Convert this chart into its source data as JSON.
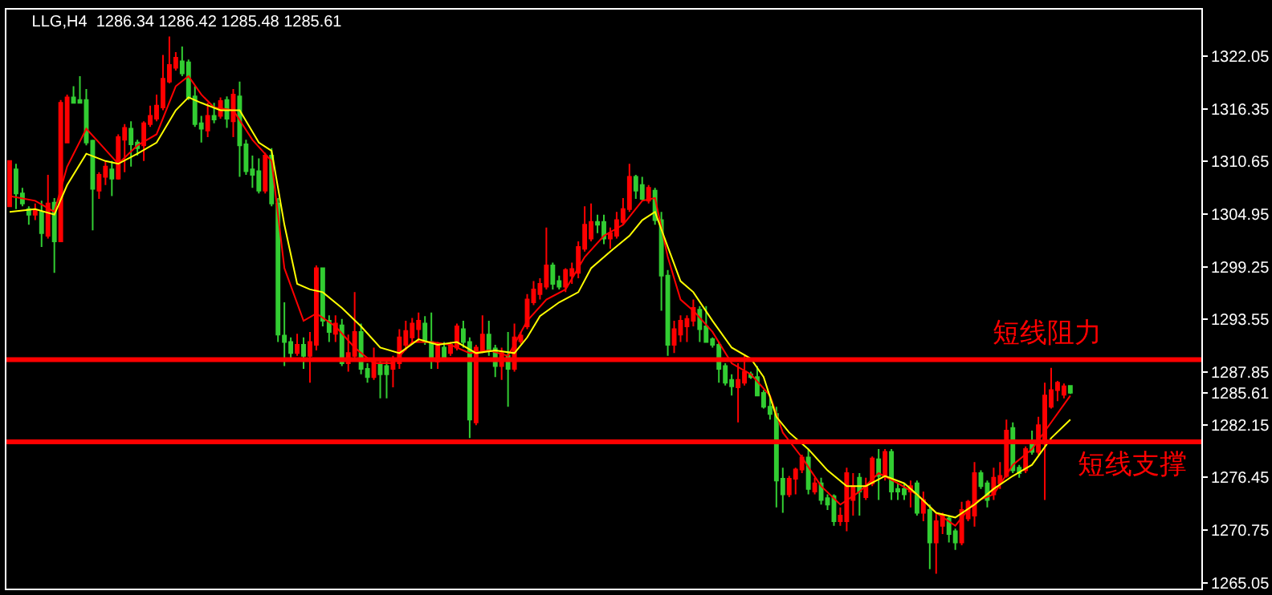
{
  "chart_data": {
    "type": "candlestick",
    "title": "LLG,H4  1286.34 1286.42 1285.48 1285.61",
    "categories": [
      null,
      null,
      null,
      null,
      null,
      null,
      null,
      null,
      null,
      null,
      null,
      null,
      null,
      null,
      null,
      null,
      null,
      null,
      null,
      null,
      null,
      null,
      null,
      null,
      null,
      null,
      null,
      null,
      null,
      null,
      null,
      null,
      null,
      null,
      null,
      null,
      null,
      null,
      null,
      null,
      null,
      null,
      null,
      null,
      null,
      null,
      null,
      null,
      null,
      null,
      null,
      null,
      null,
      null,
      null,
      null,
      null,
      null,
      null,
      null,
      null,
      null,
      null,
      null,
      null,
      null,
      null,
      null,
      null,
      null,
      null,
      null,
      null,
      null,
      null,
      null,
      null,
      null,
      null,
      null,
      null,
      null,
      null,
      null,
      null,
      null,
      null,
      null,
      null,
      null,
      null,
      null,
      null,
      null,
      null,
      null,
      null,
      null,
      null,
      null,
      null,
      null,
      null,
      null,
      null,
      null,
      null,
      null,
      null,
      null,
      null,
      null,
      null,
      null,
      null,
      null,
      null,
      null,
      null,
      null,
      null,
      null,
      null,
      null,
      null,
      null,
      null,
      null,
      null,
      null,
      null,
      null,
      null,
      null,
      null,
      null,
      null,
      null,
      null,
      null,
      null,
      null,
      null,
      null,
      null,
      null,
      null,
      null,
      null,
      null,
      null,
      null,
      null,
      null,
      null,
      null,
      null,
      null,
      null,
      null,
      null,
      null,
      null,
      null,
      null,
      null,
      null,
      null,
      null,
      null,
      null,
      null,
      null,
      null,
      null,
      null,
      null,
      null,
      null,
      null,
      null,
      null,
      null,
      null,
      null,
      null,
      null
    ],
    "colors": [
      "#ff0000",
      "#32cd32",
      "#32cd32",
      "#32cd32",
      "#ff0000",
      "#32cd32",
      "#ff0000",
      "#32cd32",
      "#ff0000",
      "#ff0000",
      "#32cd32",
      "#32cd32",
      "#32cd32",
      "#32cd32",
      "#ff0000",
      "#ff0000",
      "#32cd32",
      "#ff0000",
      "#ff0000",
      "#32cd32",
      "#32cd32",
      "#ff0000",
      "#ff0000",
      "#ff0000",
      "#ff0000",
      "#ff0000",
      "#ff0000",
      "#32cd32",
      "#32cd32",
      "#32cd32",
      "#32cd32",
      "#ff0000",
      "#32cd32",
      "#ff0000",
      "#32cd32",
      "#ff0000",
      "#32cd32",
      "#32cd32",
      "#32cd32",
      "#32cd32",
      "#ff0000",
      "#32cd32",
      "#32cd32",
      "#32cd32",
      "#32cd32",
      "#ff0000",
      "#32cd32",
      "#ff0000",
      "#ff0000",
      "#32cd32",
      "#32cd32",
      "#ff0000",
      "#32cd32",
      "#ff0000",
      "#ff0000",
      "#32cd32",
      "#32cd32",
      "#ff0000",
      "#32cd32",
      "#32cd32",
      "#ff0000",
      "#ff0000",
      "#ff0000",
      "#ff0000",
      "#ff0000",
      "#32cd32",
      "#32cd32",
      "#ff0000",
      "#32cd32",
      "#ff0000",
      "#ff0000",
      "#32cd32",
      "#32cd32",
      "#ff0000",
      "#ff0000",
      "#32cd32",
      "#32cd32",
      "#ff0000",
      "#32cd32",
      "#ff0000",
      "#ff0000",
      "#ff0000",
      "#ff0000",
      "#ff0000",
      "#ff0000",
      "#32cd32",
      "#32cd32",
      "#ff0000",
      "#ff0000",
      "#ff0000",
      "#ff0000",
      "#ff0000",
      "#32cd32",
      "#32cd32",
      "#ff0000",
      "#ff0000",
      "#ff0000",
      "#ff0000",
      "#32cd32",
      "#32cd32",
      "#ff0000",
      "#32cd32",
      "#32cd32",
      "#32cd32",
      "#ff0000",
      "#ff0000",
      "#ff0000",
      "#ff0000",
      "#32cd32",
      "#32cd32",
      "#32cd32",
      "#32cd32",
      "#32cd32",
      "#32cd32",
      "#ff0000",
      "#ff0000",
      "#32cd32",
      "#32cd32",
      "#32cd32",
      "#32cd32",
      "#32cd32",
      "#32cd32",
      "#ff0000",
      "#ff0000",
      "#ff0000",
      "#32cd32",
      "#ff0000",
      "#32cd32",
      "#32cd32",
      "#32cd32",
      "#ff0000",
      "#ff0000",
      "#ff0000",
      "#32cd32",
      "#ff0000",
      "#ff0000",
      "#32cd32",
      "#ff0000",
      "#32cd32",
      "#32cd32",
      "#32cd32",
      "#ff0000",
      "#32cd32",
      "#ff0000",
      "#32cd32",
      "#ff0000",
      "#ff0000",
      "#32cd32",
      "#32cd32",
      "#ff0000",
      "#ff0000",
      "#ff0000",
      "#32cd32",
      "#32cd32",
      "#ff0000",
      "#ff0000",
      "#ff0000",
      "#32cd32",
      "#32cd32",
      "#ff0000",
      "#32cd32",
      "#ff0000",
      "#ff0000",
      "#ff0000",
      "#ff0000",
      "#ff0000",
      "#32cd32",
      null,
      null,
      null,
      null,
      null,
      null,
      null,
      null,
      null,
      null,
      null,
      null,
      null,
      null,
      null,
      null,
      null,
      null,
      null,
      null
    ],
    "ohlc": [
      [
        1305.8,
        1310.7,
        1305.8,
        1310.7
      ],
      [
        1309.8,
        1310.4,
        1305.5,
        1307.2
      ],
      [
        1307.2,
        1307.8,
        1305.8,
        1306.1
      ],
      [
        1305.5,
        1305.8,
        1303.8,
        1304.9
      ],
      [
        1304.9,
        1306.1,
        1304.3,
        1305.4
      ],
      [
        1305.2,
        1306.4,
        1301.4,
        1302.9
      ],
      [
        1302.6,
        1309.2,
        1302.3,
        1306.1
      ],
      [
        1306.2,
        1306.7,
        1298.6,
        1302.0
      ],
      [
        1302.0,
        1317.3,
        1302.0,
        1317.0
      ],
      [
        1312.7,
        1317.9,
        1312.7,
        1317.6
      ],
      [
        1317.6,
        1318.8,
        1317.0,
        1317.0
      ],
      [
        1317.3,
        1319.9,
        1317.0,
        1317.0
      ],
      [
        1317.3,
        1318.5,
        1312.4,
        1312.7
      ],
      [
        1312.9,
        1313.0,
        1303.2,
        1307.7
      ],
      [
        1307.5,
        1309.5,
        1306.6,
        1309.2
      ],
      [
        1309.0,
        1310.7,
        1308.1,
        1310.1
      ],
      [
        1309.8,
        1310.7,
        1306.9,
        1308.8
      ],
      [
        1308.8,
        1313.6,
        1308.7,
        1313.3
      ],
      [
        1313.0,
        1314.7,
        1309.5,
        1314.3
      ],
      [
        1314.2,
        1315.0,
        1310.1,
        1312.5
      ],
      [
        1312.7,
        1313.0,
        1311.3,
        1312.1
      ],
      [
        1312.4,
        1315.0,
        1310.7,
        1314.8
      ],
      [
        1314.7,
        1316.7,
        1314.4,
        1315.6
      ],
      [
        1315.3,
        1317.9,
        1315.0,
        1316.7
      ],
      [
        1316.5,
        1322.2,
        1316.2,
        1319.6
      ],
      [
        1319.3,
        1324.2,
        1319.1,
        1321.1
      ],
      [
        1320.8,
        1322.5,
        1320.5,
        1321.9
      ],
      [
        1321.5,
        1323.1,
        1319.9,
        1320.2
      ],
      [
        1321.4,
        1321.7,
        1317.3,
        1317.6
      ],
      [
        1317.7,
        1318.8,
        1314.4,
        1314.7
      ],
      [
        1314.8,
        1315.6,
        1312.7,
        1314.2
      ],
      [
        1314.0,
        1317.0,
        1313.3,
        1315.6
      ],
      [
        1315.6,
        1317.0,
        1314.8,
        1315.2
      ],
      [
        1315.6,
        1317.6,
        1315.3,
        1317.2
      ],
      [
        1317.3,
        1317.7,
        1314.3,
        1315.3
      ],
      [
        1315.0,
        1318.5,
        1313.3,
        1317.9
      ],
      [
        1317.7,
        1319.3,
        1309.0,
        1312.4
      ],
      [
        1312.5,
        1313.0,
        1309.2,
        1309.6
      ],
      [
        1309.8,
        1311.3,
        1307.8,
        1309.2
      ],
      [
        1309.6,
        1311.0,
        1307.2,
        1307.5
      ],
      [
        1307.5,
        1311.6,
        1307.2,
        1311.3
      ],
      [
        1311.3,
        1312.1,
        1305.8,
        1306.1
      ],
      [
        1306.1,
        1306.7,
        1291.1,
        1291.9
      ],
      [
        1291.8,
        1295.4,
        1288.5,
        1291.1
      ],
      [
        1291.1,
        1291.6,
        1289.3,
        1289.9
      ],
      [
        1289.9,
        1292.0,
        1289.6,
        1290.8
      ],
      [
        1290.8,
        1291.6,
        1288.2,
        1289.6
      ],
      [
        1289.6,
        1292.2,
        1286.7,
        1291.1
      ],
      [
        1290.8,
        1299.4,
        1290.2,
        1299.1
      ],
      [
        1299.1,
        1299.1,
        1292.8,
        1293.4
      ],
      [
        1293.4,
        1294.0,
        1291.1,
        1292.2
      ],
      [
        1292.0,
        1294.0,
        1291.1,
        1293.1
      ],
      [
        1292.9,
        1293.6,
        1288.5,
        1288.8
      ],
      [
        1288.8,
        1291.9,
        1287.9,
        1289.9
      ],
      [
        1289.6,
        1296.5,
        1289.0,
        1292.2
      ],
      [
        1292.2,
        1293.1,
        1287.6,
        1288.2
      ],
      [
        1288.2,
        1288.8,
        1286.7,
        1287.3
      ],
      [
        1287.3,
        1290.5,
        1287.0,
        1289.3
      ],
      [
        1288.8,
        1289.0,
        1285.0,
        1287.6
      ],
      [
        1288.5,
        1289.3,
        1285.0,
        1287.6
      ],
      [
        1288.2,
        1289.6,
        1286.2,
        1289.0
      ],
      [
        1288.8,
        1292.5,
        1288.2,
        1291.6
      ],
      [
        1290.8,
        1293.4,
        1290.2,
        1292.3
      ],
      [
        1291.6,
        1293.7,
        1291.1,
        1293.1
      ],
      [
        1292.5,
        1294.3,
        1291.1,
        1293.4
      ],
      [
        1293.1,
        1293.9,
        1290.8,
        1291.1
      ],
      [
        1291.1,
        1294.3,
        1288.2,
        1289.3
      ],
      [
        1289.0,
        1291.1,
        1288.2,
        1290.8
      ],
      [
        1290.5,
        1291.1,
        1289.3,
        1289.3
      ],
      [
        1289.9,
        1291.1,
        1289.6,
        1290.8
      ],
      [
        1290.5,
        1293.1,
        1290.2,
        1292.8
      ],
      [
        1292.5,
        1293.4,
        1290.5,
        1291.1
      ],
      [
        1291.1,
        1291.6,
        1280.7,
        1282.7
      ],
      [
        1282.4,
        1290.8,
        1282.1,
        1290.5
      ],
      [
        1290.2,
        1294.0,
        1289.9,
        1291.9
      ],
      [
        1291.9,
        1293.4,
        1289.6,
        1290.2
      ],
      [
        1290.4,
        1290.8,
        1287.3,
        1288.5
      ],
      [
        1288.5,
        1290.5,
        1287.0,
        1289.9
      ],
      [
        1289.6,
        1292.2,
        1284.1,
        1288.2
      ],
      [
        1288.2,
        1293.1,
        1287.9,
        1291.6
      ],
      [
        1291.2,
        1292.2,
        1290.9,
        1291.8
      ],
      [
        1292.8,
        1296.3,
        1292.5,
        1295.7
      ],
      [
        1295.4,
        1297.7,
        1295.1,
        1296.8
      ],
      [
        1296.3,
        1298.0,
        1295.7,
        1297.4
      ],
      [
        1297.1,
        1303.5,
        1296.8,
        1299.4
      ],
      [
        1299.4,
        1299.7,
        1296.8,
        1297.4
      ],
      [
        1297.7,
        1298.3,
        1296.8,
        1297.1
      ],
      [
        1297.1,
        1299.1,
        1296.5,
        1298.9
      ],
      [
        1298.3,
        1299.7,
        1297.4,
        1299.0
      ],
      [
        1298.6,
        1302.0,
        1298.0,
        1301.4
      ],
      [
        1301.2,
        1305.8,
        1300.9,
        1303.8
      ],
      [
        1302.3,
        1306.1,
        1302.0,
        1304.1
      ],
      [
        1304.1,
        1304.9,
        1302.9,
        1303.8
      ],
      [
        1304.1,
        1304.9,
        1301.7,
        1302.3
      ],
      [
        1302.3,
        1303.5,
        1301.2,
        1302.9
      ],
      [
        1302.6,
        1305.2,
        1302.3,
        1304.3
      ],
      [
        1304.1,
        1306.7,
        1303.8,
        1305.5
      ],
      [
        1305.5,
        1310.4,
        1305.2,
        1309.0
      ],
      [
        1309.0,
        1309.2,
        1306.6,
        1307.5
      ],
      [
        1308.1,
        1309.0,
        1306.4,
        1306.6
      ],
      [
        1306.4,
        1308.1,
        1306.1,
        1307.8
      ],
      [
        1307.5,
        1307.8,
        1303.8,
        1304.3
      ],
      [
        1304.3,
        1305.2,
        1294.5,
        1298.3
      ],
      [
        1298.3,
        1298.9,
        1289.6,
        1290.8
      ],
      [
        1290.8,
        1293.4,
        1289.9,
        1292.5
      ],
      [
        1291.9,
        1294.0,
        1291.1,
        1293.4
      ],
      [
        1292.8,
        1294.0,
        1291.1,
        1293.6
      ],
      [
        1293.4,
        1295.7,
        1292.8,
        1294.8
      ],
      [
        1294.6,
        1295.0,
        1291.1,
        1292.5
      ],
      [
        1292.8,
        1295.0,
        1291.1,
        1291.1
      ],
      [
        1291.4,
        1291.6,
        1290.5,
        1290.8
      ],
      [
        1290.8,
        1291.1,
        1286.7,
        1288.2
      ],
      [
        1288.5,
        1288.8,
        1286.4,
        1286.7
      ],
      [
        1287.0,
        1287.6,
        1285.3,
        1286.3
      ],
      [
        1286.2,
        1288.8,
        1282.4,
        1287.0
      ],
      [
        1286.7,
        1289.6,
        1286.4,
        1287.9
      ],
      [
        1287.6,
        1287.9,
        1287.1,
        1287.3
      ],
      [
        1287.3,
        1288.5,
        1285.3,
        1285.3
      ],
      [
        1285.6,
        1285.9,
        1283.9,
        1284.1
      ],
      [
        1284.1,
        1285.0,
        1282.7,
        1283.3
      ],
      [
        1283.3,
        1284.1,
        1273.2,
        1276.1
      ],
      [
        1276.3,
        1277.5,
        1272.6,
        1274.6
      ],
      [
        1274.6,
        1276.6,
        1274.3,
        1276.3
      ],
      [
        1276.3,
        1277.5,
        1274.6,
        1277.3
      ],
      [
        1277.3,
        1278.9,
        1276.9,
        1278.6
      ],
      [
        1278.6,
        1279.5,
        1274.6,
        1275.2
      ],
      [
        1274.9,
        1276.4,
        1274.6,
        1275.8
      ],
      [
        1275.8,
        1276.4,
        1273.5,
        1274.0
      ],
      [
        1274.2,
        1274.6,
        1272.9,
        1273.5
      ],
      [
        1274.4,
        1274.6,
        1271.2,
        1271.7
      ],
      [
        1271.7,
        1273.2,
        1271.2,
        1272.3
      ],
      [
        1271.7,
        1277.5,
        1270.6,
        1276.9
      ],
      [
        1274.0,
        1276.9,
        1272.3,
        1275.5
      ],
      [
        1276.4,
        1276.9,
        1272.3,
        1274.9
      ],
      [
        1274.3,
        1276.4,
        1274.0,
        1275.5
      ],
      [
        1275.8,
        1278.7,
        1275.5,
        1278.5
      ],
      [
        1278.4,
        1279.5,
        1274.0,
        1276.6
      ],
      [
        1276.6,
        1279.5,
        1276.1,
        1279.2
      ],
      [
        1279.2,
        1279.5,
        1274.0,
        1274.9
      ],
      [
        1275.2,
        1275.8,
        1274.0,
        1274.9
      ],
      [
        1275.2,
        1275.8,
        1274.0,
        1274.6
      ],
      [
        1274.9,
        1276.1,
        1273.2,
        1275.5
      ],
      [
        1275.8,
        1276.1,
        1272.3,
        1272.6
      ],
      [
        1272.6,
        1274.9,
        1271.7,
        1274.0
      ],
      [
        1272.9,
        1273.5,
        1266.5,
        1269.4
      ],
      [
        1269.4,
        1272.6,
        1266.0,
        1271.7
      ],
      [
        1271.2,
        1272.6,
        1270.3,
        1272.3
      ],
      [
        1272.0,
        1272.3,
        1269.4,
        1270.3
      ],
      [
        1270.6,
        1270.9,
        1268.6,
        1269.4
      ],
      [
        1269.4,
        1273.8,
        1269.1,
        1272.9
      ],
      [
        1272.0,
        1274.0,
        1271.7,
        1273.8
      ],
      [
        1272.3,
        1278.1,
        1271.1,
        1276.9
      ],
      [
        1276.9,
        1277.2,
        1275.2,
        1275.5
      ],
      [
        1275.8,
        1276.1,
        1273.2,
        1274.0
      ],
      [
        1274.6,
        1277.5,
        1274.0,
        1276.4
      ],
      [
        1275.8,
        1278.1,
        1275.2,
        1276.6
      ],
      [
        1276.6,
        1282.7,
        1276.4,
        1281.5
      ],
      [
        1281.8,
        1282.4,
        1276.9,
        1277.2
      ],
      [
        1277.5,
        1277.8,
        1276.4,
        1276.9
      ],
      [
        1277.2,
        1279.8,
        1276.9,
        1279.5
      ],
      [
        1280.1,
        1281.5,
        1278.9,
        1279.2
      ],
      [
        1279.2,
        1283.0,
        1278.9,
        1282.1
      ],
      [
        1280.1,
        1286.7,
        1274.0,
        1285.3
      ],
      [
        1284.1,
        1288.3,
        1283.9,
        1285.9
      ],
      [
        1285.9,
        1286.9,
        1284.7,
        1286.7
      ],
      [
        1285.4,
        1286.6,
        1285.0,
        1286.3
      ],
      [
        1286.34,
        1286.42,
        1285.48,
        1285.61
      ],
      null,
      null,
      null,
      null,
      null,
      null,
      null,
      null,
      null,
      null,
      null,
      null,
      null,
      null,
      null,
      null,
      null,
      null,
      null,
      null
    ],
    "series": [
      {
        "type": "line",
        "color": "#ff0000",
        "values": [
          1306.9,
          null,
          null,
          null,
          1306.4,
          null,
          null,
          1305.2,
          null,
          1310.1,
          null,
          null,
          1314.2,
          null,
          1312.7,
          null,
          null,
          1310.4,
          null,
          null,
          1312.4,
          null,
          null,
          1313.6,
          null,
          null,
          1318.8,
          null,
          1319.9,
          null,
          1317.9,
          null,
          1316.5,
          null,
          null,
          1316.2,
          null,
          null,
          1313.0,
          null,
          null,
          1310.7,
          null,
          1299.1,
          null,
          null,
          1293.4,
          null,
          1294.2,
          null,
          null,
          1292.8,
          null,
          null,
          1290.5,
          null,
          null,
          1288.8,
          null,
          null,
          1288.8,
          null,
          null,
          1291.1,
          null,
          null,
          1291.1,
          null,
          null,
          1290.8,
          null,
          null,
          1289.9,
          null,
          null,
          1290.2,
          null,
          null,
          1289.6,
          null,
          null,
          1293.4,
          null,
          null,
          1295.7,
          null,
          null,
          1296.8,
          null,
          null,
          1300.3,
          null,
          null,
          1302.6,
          null,
          null,
          1303.8,
          null,
          null,
          1306.4,
          null,
          1306.7,
          null,
          1300.3,
          null,
          1295.7,
          null,
          1294.5,
          null,
          null,
          1292.2,
          null,
          null,
          1288.8,
          null,
          null,
          1287.6,
          null,
          null,
          1285.3,
          null,
          1281.3,
          null,
          null,
          1278.6,
          null,
          null,
          1275.5,
          null,
          null,
          1273.5,
          null,
          null,
          1274.9,
          null,
          null,
          1276.9,
          null,
          null,
          1275.8,
          null,
          null,
          1274.6,
          null,
          null,
          1272.6,
          null,
          null,
          1271.2,
          null,
          null,
          1273.8,
          null,
          null,
          1274.6,
          null,
          null,
          1277.8,
          null,
          null,
          1279.5,
          null,
          null,
          1282.4,
          null,
          null,
          1285.3,
          null,
          null,
          null,
          null,
          null,
          null,
          null,
          null,
          null,
          null,
          null,
          null,
          null,
          null,
          null,
          null,
          null,
          null,
          null,
          null
        ]
      },
      {
        "type": "line",
        "color": "#ffff00",
        "values": [
          1305.2,
          null,
          null,
          null,
          1305.5,
          null,
          null,
          1304.9,
          null,
          1308.1,
          null,
          null,
          1311.5,
          null,
          null,
          1310.7,
          null,
          1310.4,
          null,
          null,
          1311.5,
          null,
          null,
          1312.7,
          null,
          null,
          1316.2,
          null,
          1317.6,
          null,
          1317.0,
          null,
          null,
          1316.2,
          null,
          null,
          1316.2,
          null,
          null,
          1312.7,
          null,
          1311.8,
          null,
          1303.8,
          null,
          1297.4,
          null,
          1296.8,
          null,
          1296.5,
          null,
          null,
          1294.8,
          null,
          null,
          1292.8,
          null,
          null,
          1290.5,
          null,
          null,
          1289.9,
          null,
          null,
          1291.4,
          null,
          null,
          1290.8,
          null,
          null,
          1291.1,
          null,
          null,
          1289.9,
          null,
          null,
          1290.2,
          null,
          null,
          1289.9,
          null,
          1291.6,
          null,
          1293.9,
          null,
          null,
          1295.4,
          null,
          null,
          1296.5,
          null,
          1299.1,
          null,
          null,
          1300.9,
          null,
          null,
          1302.6,
          null,
          1304.3,
          null,
          1305.2,
          null,
          1301.4,
          null,
          1297.7,
          null,
          1296.5,
          null,
          null,
          1293.4,
          null,
          null,
          1290.5,
          null,
          null,
          1289.3,
          null,
          1287.3,
          null,
          1283.0,
          null,
          1281.3,
          null,
          null,
          1279.5,
          null,
          null,
          1277.2,
          null,
          null,
          1275.5,
          null,
          null,
          1275.5,
          null,
          null,
          1276.6,
          null,
          null,
          1275.8,
          null,
          1274.6,
          null,
          null,
          1272.6,
          null,
          null,
          1272.1,
          null,
          null,
          1273.5,
          null,
          null,
          1275.2,
          null,
          null,
          1276.6,
          null,
          null,
          1277.8,
          null,
          null,
          1280.7,
          null,
          null,
          1282.7,
          null,
          null,
          null,
          null,
          null,
          null,
          null,
          null,
          null,
          null,
          null,
          null,
          null,
          null,
          null,
          null,
          null,
          null,
          null,
          null
        ]
      }
    ],
    "ylim": [
      1264.4,
      1327.1
    ],
    "yticks": [
      1265.05,
      1270.75,
      1276.45,
      1282.15,
      1285.61,
      1287.85,
      1293.55,
      1299.25,
      1304.95,
      1310.65,
      1316.35,
      1322.05
    ],
    "ref_lines": [
      {
        "axis": "y",
        "value": 1289.2,
        "label": "短线阻力",
        "color": "#ff0000"
      },
      {
        "axis": "y",
        "value": 1280.3,
        "label": "短线支撑",
        "color": "#ff0000"
      }
    ],
    "grid": false
  }
}
